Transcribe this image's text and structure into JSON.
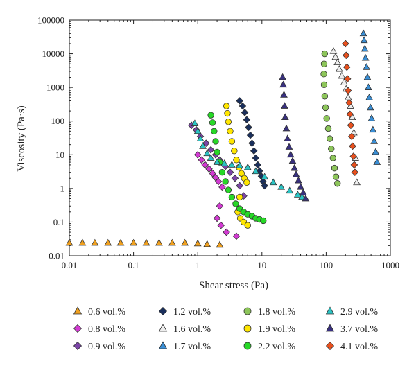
{
  "chart_data": {
    "type": "scatter",
    "xlabel": "Shear stress (Pa)",
    "ylabel": "Viscosity (Pa·s)",
    "xscale": "log",
    "yscale": "log",
    "xlim": [
      0.01,
      1000
    ],
    "ylim": [
      0.01,
      100000
    ],
    "x_ticks": [
      0.01,
      0.1,
      1,
      10,
      100,
      1000
    ],
    "x_tick_labels": [
      "0.01",
      "0.1",
      "1",
      "10",
      "100",
      "1000"
    ],
    "y_ticks": [
      0.01,
      0.1,
      1,
      10,
      100,
      1000,
      10000,
      100000
    ],
    "y_tick_labels": [
      "0.01",
      "0.1",
      "1",
      "10",
      "100",
      "1000",
      "10000",
      "100000"
    ],
    "grid": false,
    "legend_position": "bottom",
    "series": [
      {
        "name": "0.6 vol.%",
        "marker": "triangle-up",
        "color": "#f0a01e",
        "x": [
          0.01,
          0.016,
          0.025,
          0.04,
          0.063,
          0.1,
          0.158,
          0.25,
          0.4,
          0.63,
          1.0,
          1.4,
          2.2
        ],
        "y": [
          0.024,
          0.024,
          0.024,
          0.024,
          0.024,
          0.024,
          0.024,
          0.024,
          0.024,
          0.024,
          0.023,
          0.022,
          0.021
        ]
      },
      {
        "name": "0.8 vol.%",
        "marker": "diamond",
        "color": "#d23ad2",
        "x": [
          1.0,
          1.15,
          1.3,
          1.5,
          1.7,
          1.9,
          2.1,
          2.4,
          2.2,
          2.0,
          2.3,
          2.8,
          4.0
        ],
        "y": [
          10,
          7,
          5,
          3.8,
          2.8,
          2.1,
          1.6,
          1.1,
          0.3,
          0.13,
          0.08,
          0.05,
          0.038
        ]
      },
      {
        "name": "0.9 vol.%",
        "marker": "diamond",
        "color": "#7c45a8",
        "x": [
          0.8,
          0.95,
          1.1,
          1.35,
          1.6,
          1.9,
          2.2,
          2.7,
          3.2,
          3.8,
          4.5,
          5.2
        ],
        "y": [
          75,
          55,
          35,
          22,
          14,
          10,
          7,
          4.5,
          3,
          2,
          1.2,
          0.6
        ]
      },
      {
        "name": "1.2 vol.%",
        "marker": "diamond",
        "color": "#1a2f5c",
        "x": [
          4.5,
          5.0,
          5.4,
          5.8,
          6.2,
          6.6,
          7.0,
          7.5,
          8.0,
          8.6,
          9.2,
          9.8,
          10.4,
          11
        ],
        "y": [
          400,
          280,
          180,
          110,
          65,
          38,
          22,
          13,
          8,
          5,
          3.3,
          2.3,
          1.6,
          1.2
        ]
      },
      {
        "name": "1.6 vol.%",
        "marker": "triangle-up",
        "color": "#eeeeee",
        "x": [
          130,
          140,
          150,
          160,
          175,
          190,
          205,
          220,
          240,
          255,
          270,
          285,
          300
        ],
        "y": [
          12000,
          8000,
          5500,
          3500,
          2200,
          1400,
          900,
          500,
          280,
          130,
          45,
          8,
          1.5
        ]
      },
      {
        "name": "1.7 vol.%",
        "marker": "triangle-up",
        "color": "#3a8fd6",
        "x": [
          380,
          390,
          400,
          410,
          425,
          440,
          455,
          470,
          490,
          510,
          535,
          560,
          590,
          620
        ],
        "y": [
          40000,
          25000,
          14000,
          7500,
          4000,
          2000,
          1000,
          500,
          250,
          120,
          55,
          25,
          12,
          6
        ]
      },
      {
        "name": "1.8 vol.%",
        "marker": "circle",
        "color": "#8dc55a",
        "x": [
          95,
          93,
          92,
          93,
          95,
          98,
          102,
          108,
          114,
          120,
          128,
          135,
          142,
          150
        ],
        "y": [
          10000,
          5000,
          2500,
          1200,
          550,
          250,
          120,
          60,
          30,
          15,
          8,
          4,
          2.2,
          1.4
        ]
      },
      {
        "name": "1.9 vol.%",
        "marker": "circle",
        "color": "#ffe600",
        "x": [
          2.8,
          2.9,
          3.0,
          3.2,
          3.4,
          3.7,
          4.0,
          4.4,
          4.8,
          5.3,
          5.8,
          4.5,
          4.2,
          4.6,
          5.2,
          6.0
        ],
        "y": [
          280,
          170,
          95,
          50,
          25,
          13,
          7,
          4.2,
          2.8,
          2.0,
          1.5,
          0.55,
          0.2,
          0.13,
          0.1,
          0.08
        ]
      },
      {
        "name": "2.2 vol.%",
        "marker": "circle",
        "color": "#27d827",
        "x": [
          1.6,
          1.7,
          1.8,
          1.9,
          2.0,
          2.2,
          2.4,
          2.7,
          3.0,
          3.4,
          3.9,
          4.5,
          5.2,
          6.0,
          7.0,
          8.0,
          9.2,
          10.5
        ],
        "y": [
          150,
          90,
          50,
          25,
          12,
          6,
          3,
          1.6,
          0.9,
          0.55,
          0.35,
          0.25,
          0.2,
          0.17,
          0.15,
          0.13,
          0.12,
          0.11
        ]
      },
      {
        "name": "2.9 vol.%",
        "marker": "triangle-up",
        "color": "#2bc4c4",
        "x": [
          0.9,
          1.0,
          1.1,
          1.2,
          1.4,
          1.6,
          2.0,
          2.6,
          3.4,
          4.5,
          6.0,
          8.0,
          11,
          15,
          20,
          27,
          36,
          42
        ],
        "y": [
          85,
          50,
          30,
          18,
          11,
          8,
          6,
          5.5,
          5,
          4.8,
          4.2,
          3.2,
          2.2,
          1.5,
          1.1,
          0.85,
          0.65,
          0.55
        ]
      },
      {
        "name": "3.7 vol.%",
        "marker": "triangle-up",
        "color": "#38307e",
        "x": [
          21,
          21.5,
          22,
          22.5,
          23,
          24,
          25,
          26.5,
          28,
          30,
          32,
          34,
          37,
          40,
          44,
          48
        ],
        "y": [
          2000,
          1200,
          600,
          280,
          130,
          60,
          30,
          17,
          10,
          6.5,
          4,
          2.6,
          1.7,
          1.1,
          0.75,
          0.5
        ]
      },
      {
        "name": "4.1 vol.%",
        "marker": "diamond",
        "color": "#e8501e",
        "x": [
          200,
          205,
          210,
          215,
          220,
          228,
          235,
          242,
          250,
          258,
          266,
          274,
          280
        ],
        "y": [
          20000,
          9000,
          4000,
          1800,
          800,
          350,
          160,
          75,
          35,
          18,
          9,
          5,
          3
        ]
      }
    ]
  }
}
